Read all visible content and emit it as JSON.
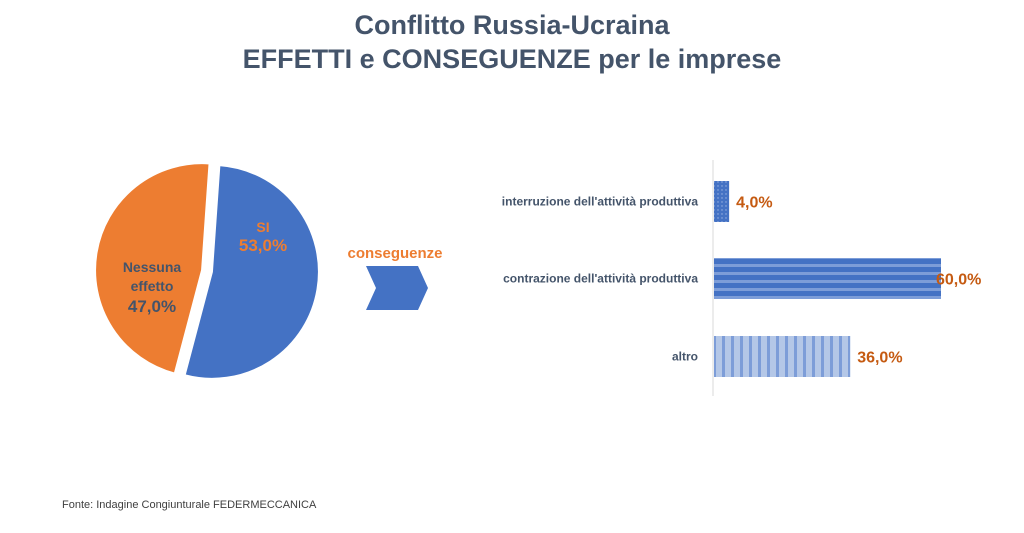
{
  "title_line1": "Conflitto Russia-Ucraina",
  "title_line2": "EFFETTI e CONSEGUENZE per le imprese",
  "arrow_label": "conseguenze",
  "source": "Fonte: Indagine Congiunturale FEDERMECCANICA",
  "colors": {
    "blue": "#4472c4",
    "orange": "#ed7d31",
    "label_orange": "#c55a11",
    "label_blue": "#44546a"
  },
  "chart_data": [
    {
      "type": "pie",
      "slices": [
        {
          "label_line1": "SI",
          "label_line2": "",
          "value": 53.0,
          "value_label": "53,0%",
          "color": "#4472c4"
        },
        {
          "label_line1": "Nessuna",
          "label_line2": "effetto",
          "value": 47.0,
          "value_label": "47,0%",
          "color": "#ed7d31"
        }
      ]
    },
    {
      "type": "bar",
      "orientation": "horizontal",
      "categories": [
        "interruzione dell'attività produttiva",
        "contrazione dell'attività produttiva",
        "altro"
      ],
      "values": [
        4.0,
        60.0,
        36.0
      ],
      "value_labels": [
        "4,0%",
        "60,0%",
        "36,0%"
      ],
      "xlim": [
        0,
        60
      ]
    }
  ]
}
